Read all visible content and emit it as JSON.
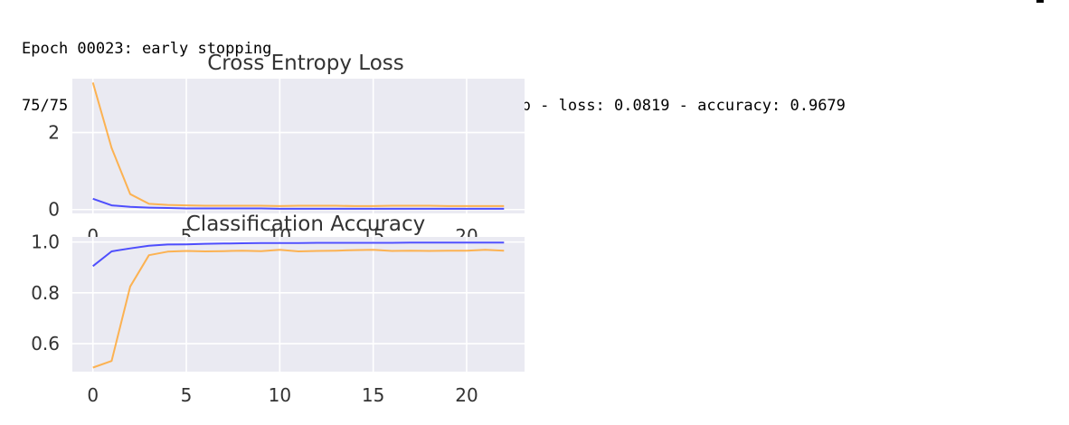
{
  "console": {
    "line1": "Epoch 00023: early stopping",
    "line2": "75/75 [==============================] - 41s 547ms/step - loss: 0.0819 - accuracy: 0.9679"
  },
  "chart_data": [
    {
      "type": "line",
      "title": "Cross Entropy Loss",
      "xlabel": "",
      "ylabel": "",
      "xlim": [
        -1.1,
        23.1
      ],
      "ylim": [
        -0.1,
        3.4
      ],
      "xticks": [
        0,
        5,
        10,
        15,
        20
      ],
      "yticks": [
        0,
        2
      ],
      "grid": true,
      "x": [
        0,
        1,
        2,
        3,
        4,
        5,
        6,
        7,
        8,
        9,
        10,
        11,
        12,
        13,
        14,
        15,
        16,
        17,
        18,
        19,
        20,
        21,
        22
      ],
      "series": [
        {
          "color": "#3333ff",
          "values": [
            0.28,
            0.11,
            0.07,
            0.05,
            0.04,
            0.03,
            0.03,
            0.03,
            0.03,
            0.03,
            0.02,
            0.02,
            0.02,
            0.02,
            0.02,
            0.02,
            0.02,
            0.02,
            0.02,
            0.02,
            0.02,
            0.02,
            0.02
          ]
        },
        {
          "color": "#ffa836",
          "values": [
            3.3,
            1.6,
            0.4,
            0.15,
            0.12,
            0.11,
            0.1,
            0.1,
            0.1,
            0.1,
            0.09,
            0.1,
            0.1,
            0.1,
            0.09,
            0.09,
            0.1,
            0.1,
            0.1,
            0.09,
            0.09,
            0.09,
            0.09
          ]
        }
      ]
    },
    {
      "type": "line",
      "title": "Classification Accuracy",
      "xlabel": "",
      "ylabel": "",
      "xlim": [
        -1.1,
        23.1
      ],
      "ylim": [
        0.49,
        1.02
      ],
      "xticks": [
        0,
        5,
        10,
        15,
        20
      ],
      "yticks": [
        0.6,
        0.8,
        1.0
      ],
      "grid": true,
      "x": [
        0,
        1,
        2,
        3,
        4,
        5,
        6,
        7,
        8,
        9,
        10,
        11,
        12,
        13,
        14,
        15,
        16,
        17,
        18,
        19,
        20,
        21,
        22
      ],
      "series": [
        {
          "color": "#3333ff",
          "values": [
            0.905,
            0.963,
            0.975,
            0.985,
            0.99,
            0.991,
            0.993,
            0.994,
            0.995,
            0.996,
            0.996,
            0.996,
            0.997,
            0.997,
            0.997,
            0.997,
            0.997,
            0.998,
            0.998,
            0.998,
            0.998,
            0.998,
            0.998
          ]
        },
        {
          "color": "#ffa836",
          "values": [
            0.506,
            0.532,
            0.825,
            0.948,
            0.962,
            0.965,
            0.963,
            0.964,
            0.966,
            0.964,
            0.969,
            0.963,
            0.965,
            0.966,
            0.968,
            0.969,
            0.965,
            0.966,
            0.965,
            0.966,
            0.966,
            0.969,
            0.966
          ]
        }
      ]
    }
  ]
}
